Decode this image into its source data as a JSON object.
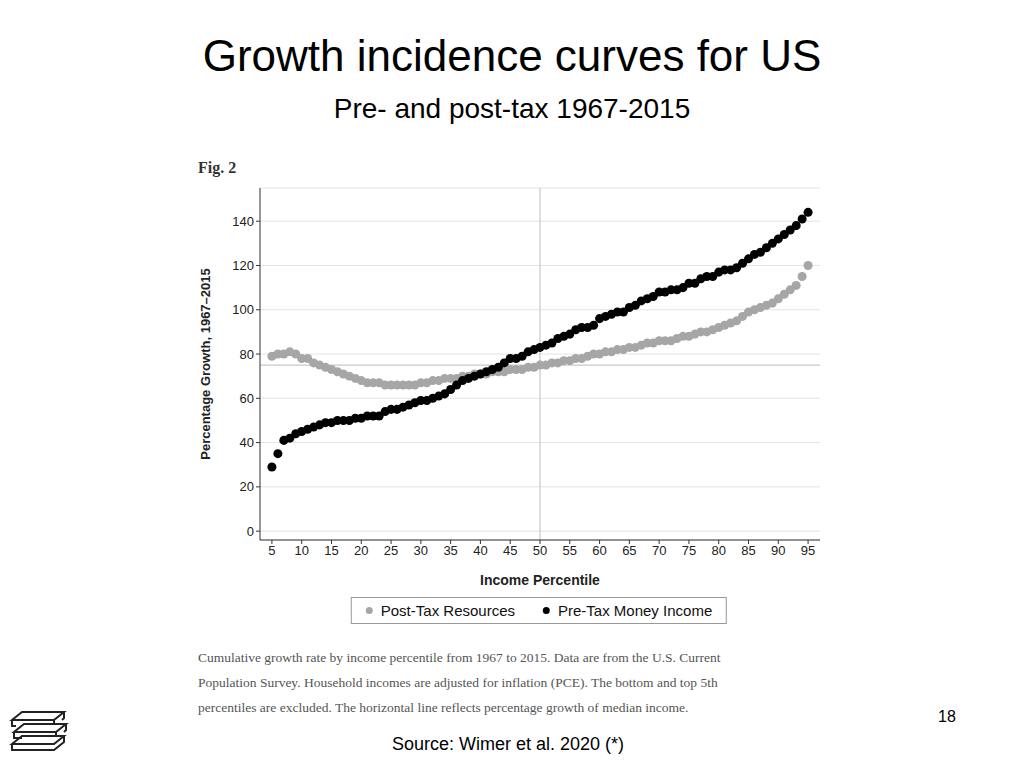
{
  "title": "Growth incidence curves for US",
  "subtitle": "Pre- and post-tax 1967-2015",
  "figure_label": "Fig. 2",
  "chart_data": {
    "type": "scatter",
    "x_label": "Income Percentile",
    "y_label": "Percentage Growth, 1967–2015",
    "x": [
      5,
      6,
      7,
      8,
      9,
      10,
      11,
      12,
      13,
      14,
      15,
      16,
      17,
      18,
      19,
      20,
      21,
      22,
      23,
      24,
      25,
      26,
      27,
      28,
      29,
      30,
      31,
      32,
      33,
      34,
      35,
      36,
      37,
      38,
      39,
      40,
      41,
      42,
      43,
      44,
      45,
      46,
      47,
      48,
      49,
      50,
      51,
      52,
      53,
      54,
      55,
      56,
      57,
      58,
      59,
      60,
      61,
      62,
      63,
      64,
      65,
      66,
      67,
      68,
      69,
      70,
      71,
      72,
      73,
      74,
      75,
      76,
      77,
      78,
      79,
      80,
      81,
      82,
      83,
      84,
      85,
      86,
      87,
      88,
      89,
      90,
      91,
      92,
      93,
      94,
      95
    ],
    "series": [
      {
        "name": "Post-Tax Resources",
        "color": "#a6a6a6",
        "marker": "circle",
        "values": [
          79,
          80,
          80,
          81,
          80,
          78,
          78,
          76,
          75,
          74,
          73,
          72,
          71,
          70,
          69,
          68,
          67,
          67,
          67,
          66,
          66,
          66,
          66,
          66,
          66,
          67,
          67,
          68,
          68,
          69,
          69,
          69,
          70,
          70,
          71,
          71,
          71,
          72,
          72,
          72,
          73,
          73,
          73,
          74,
          74,
          75,
          75,
          76,
          76,
          77,
          77,
          78,
          78,
          79,
          80,
          80,
          81,
          81,
          82,
          82,
          83,
          83,
          84,
          85,
          85,
          86,
          86,
          86,
          87,
          88,
          88,
          89,
          90,
          90,
          91,
          92,
          93,
          94,
          95,
          97,
          99,
          100,
          101,
          102,
          103,
          105,
          107,
          109,
          111,
          115,
          120
        ]
      },
      {
        "name": "Pre-Tax Money Income",
        "color": "#000000",
        "marker": "circle",
        "values": [
          29,
          35,
          41,
          42,
          44,
          45,
          46,
          47,
          48,
          49,
          49,
          50,
          50,
          50,
          51,
          51,
          52,
          52,
          52,
          54,
          55,
          55,
          56,
          57,
          58,
          59,
          59,
          60,
          61,
          62,
          64,
          66,
          68,
          69,
          70,
          71,
          72,
          73,
          74,
          76,
          78,
          78,
          79,
          81,
          82,
          83,
          84,
          85,
          87,
          88,
          89,
          91,
          92,
          92,
          93,
          96,
          97,
          98,
          99,
          99,
          101,
          102,
          104,
          105,
          106,
          108,
          108,
          109,
          109,
          110,
          112,
          112,
          114,
          115,
          115,
          117,
          118,
          118,
          119,
          121,
          123,
          125,
          126,
          128,
          130,
          132,
          134,
          136,
          138,
          141,
          144
        ]
      }
    ],
    "xlim": [
      3,
      97
    ],
    "ylim": [
      -4,
      155
    ],
    "xticks": [
      5,
      10,
      15,
      20,
      25,
      30,
      35,
      40,
      45,
      50,
      55,
      60,
      65,
      70,
      75,
      80,
      85,
      90,
      95
    ],
    "yticks": [
      0,
      20,
      40,
      60,
      80,
      100,
      120,
      140
    ],
    "hlines": [
      75
    ],
    "vlines": [
      50
    ],
    "grid": true,
    "legend": "bottom"
  },
  "caption": [
    "Cumulative growth rate by income percentile from 1967 to 2015. Data are from the U.S. Current",
    "Population Survey. Household incomes are adjusted for inflation (PCE). The bottom and top 5th",
    "percentiles are excluded. The horizontal line reflects percentage growth of median income."
  ],
  "source": "Source: Wimer et al. 2020 (*)",
  "page_number": "18"
}
